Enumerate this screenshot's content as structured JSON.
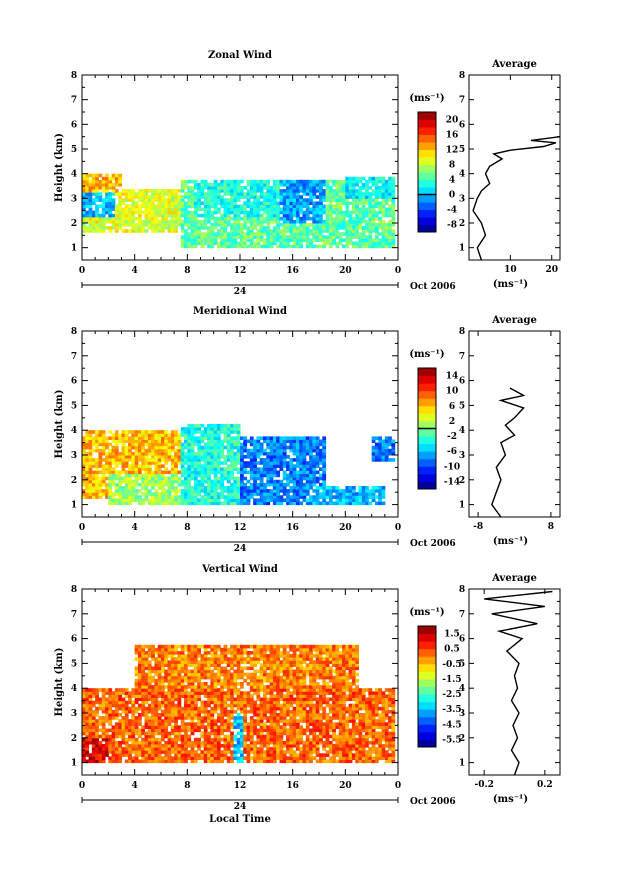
{
  "chart_data": [
    {
      "type": "heatmap",
      "title": "Zonal Wind",
      "ylabel": "Height (km)",
      "xlim": [
        0,
        24
      ],
      "ylim": [
        0.5,
        8
      ],
      "xticks": [
        "0",
        "4",
        "8",
        "12",
        "16",
        "20",
        "0"
      ],
      "yticks": [
        "1",
        "2",
        "3",
        "4",
        "5",
        "6",
        "7",
        "8"
      ],
      "date_marker": "24",
      "date_label": "Oct 2006",
      "colorbar": {
        "unit": "(ms⁻¹)",
        "ticks": [
          "20",
          "16",
          "12",
          "8",
          "4",
          "0",
          "-4",
          "-8"
        ],
        "min": -10,
        "max": 22
      },
      "zero_level": 0,
      "regions": [
        {
          "x": [
            0,
            7.5
          ],
          "y": [
            1.6,
            3.4
          ],
          "v": 9
        },
        {
          "x": [
            0,
            2.5
          ],
          "y": [
            2.2,
            3.3
          ],
          "v": 0
        },
        {
          "x": [
            0,
            3
          ],
          "y": [
            3.3,
            4.0
          ],
          "v": 12
        },
        {
          "x": [
            7.5,
            23.8
          ],
          "y": [
            1.0,
            3.7
          ],
          "v": 5
        },
        {
          "x": [
            8.5,
            16
          ],
          "y": [
            2.3,
            3.8
          ],
          "v": 3
        },
        {
          "x": [
            15,
            18.5
          ],
          "y": [
            2.0,
            3.8
          ],
          "v": -1
        },
        {
          "x": [
            20,
            23.8
          ],
          "y": [
            3.0,
            3.9
          ],
          "v": 2
        }
      ],
      "profile": {
        "title": "Average",
        "xlabel": "(ms⁻¹)",
        "xticks": [
          "10",
          "20"
        ],
        "xlim": [
          0,
          22
        ],
        "points": [
          [
            3,
            0.5
          ],
          [
            2,
            1
          ],
          [
            4,
            1.5
          ],
          [
            3,
            2
          ],
          [
            1,
            2.5
          ],
          [
            2,
            3
          ],
          [
            3,
            3.3
          ],
          [
            5,
            3.6
          ],
          [
            4,
            4
          ],
          [
            5,
            4.3
          ],
          [
            8,
            4.6
          ],
          [
            6,
            4.8
          ],
          [
            10,
            4.95
          ],
          [
            18,
            5.1
          ],
          [
            21,
            5.25
          ],
          [
            15,
            5.35
          ],
          [
            22,
            5.5
          ]
        ]
      }
    },
    {
      "type": "heatmap",
      "title": "Meridional Wind",
      "ylabel": "Height (km)",
      "xlim": [
        0,
        24
      ],
      "ylim": [
        0.5,
        8
      ],
      "xticks": [
        "0",
        "4",
        "8",
        "12",
        "16",
        "20",
        "0"
      ],
      "yticks": [
        "1",
        "2",
        "3",
        "4",
        "5",
        "6",
        "7",
        "8"
      ],
      "date_marker": "24",
      "date_label": "Oct 2006",
      "colorbar": {
        "unit": "(ms⁻¹)",
        "ticks": [
          "14",
          "10",
          "6",
          "2",
          "-2",
          "-6",
          "-10",
          "-14"
        ],
        "min": -16,
        "max": 16
      },
      "zero_level": 0,
      "regions": [
        {
          "x": [
            0,
            7.5
          ],
          "y": [
            1.3,
            4.0
          ],
          "v": 6
        },
        {
          "x": [
            2,
            7.5
          ],
          "y": [
            1.0,
            2.2
          ],
          "v": 1
        },
        {
          "x": [
            7.5,
            12
          ],
          "y": [
            1.0,
            4.3
          ],
          "v": -3
        },
        {
          "x": [
            12,
            18.5
          ],
          "y": [
            1.0,
            3.8
          ],
          "v": -8
        },
        {
          "x": [
            17,
            23
          ],
          "y": [
            1.0,
            1.7
          ],
          "v": -6
        },
        {
          "x": [
            22,
            23.8
          ],
          "y": [
            2.8,
            3.8
          ],
          "v": -8
        }
      ],
      "profile": {
        "title": "Average",
        "xlabel": "(ms⁻¹)",
        "xticks": [
          "-8",
          "8"
        ],
        "xlim": [
          -10,
          10
        ],
        "points": [
          [
            -3,
            0.5
          ],
          [
            -5,
            1
          ],
          [
            -4,
            1.5
          ],
          [
            -3,
            2
          ],
          [
            -4,
            2.5
          ],
          [
            -2,
            3
          ],
          [
            -3,
            3.5
          ],
          [
            0,
            3.8
          ],
          [
            -2,
            4.2
          ],
          [
            0,
            4.5
          ],
          [
            2,
            4.9
          ],
          [
            -3,
            5.2
          ],
          [
            2,
            5.4
          ],
          [
            -1,
            5.7
          ]
        ]
      }
    },
    {
      "type": "heatmap",
      "title": "Vertical Wind",
      "ylabel": "Height (km)",
      "xlabel": "Local Time",
      "xlim": [
        0,
        24
      ],
      "ylim": [
        0.5,
        8
      ],
      "xticks": [
        "0",
        "4",
        "8",
        "12",
        "16",
        "20",
        "0"
      ],
      "yticks": [
        "1",
        "2",
        "3",
        "4",
        "5",
        "6",
        "7",
        "8"
      ],
      "date_marker": "24",
      "date_label": "Oct 2006",
      "colorbar": {
        "unit": "(ms⁻¹)",
        "ticks": [
          "1.5",
          "0.5",
          "-0.5",
          "-1.5",
          "-2.5",
          "-3.5",
          "-4.5",
          "-5.5"
        ],
        "min": -6,
        "max": 2
      },
      "regions": [
        {
          "x": [
            0,
            23.8
          ],
          "y": [
            1.0,
            4.0
          ],
          "v": 0.2
        },
        {
          "x": [
            0,
            2
          ],
          "y": [
            1.0,
            2.0
          ],
          "v": 1.2
        },
        {
          "x": [
            11.5,
            12.3
          ],
          "y": [
            1.0,
            3.0
          ],
          "v": -3.5
        },
        {
          "x": [
            4,
            21
          ],
          "y": [
            4.0,
            5.8
          ],
          "v": 0.0
        }
      ],
      "profile": {
        "title": "Average",
        "xlabel": "(ms⁻¹)",
        "xticks": [
          "-0.2",
          "0.2"
        ],
        "xlim": [
          -0.3,
          0.3
        ],
        "points": [
          [
            0.0,
            0.5
          ],
          [
            0.03,
            1
          ],
          [
            -0.02,
            1.5
          ],
          [
            0.02,
            2
          ],
          [
            -0.01,
            2.5
          ],
          [
            0.03,
            3
          ],
          [
            -0.02,
            3.5
          ],
          [
            0.02,
            4
          ],
          [
            0.0,
            4.5
          ],
          [
            0.03,
            5
          ],
          [
            -0.05,
            5.5
          ],
          [
            0.05,
            6
          ],
          [
            -0.1,
            6.3
          ],
          [
            0.15,
            6.6
          ],
          [
            -0.15,
            7
          ],
          [
            0.2,
            7.3
          ],
          [
            -0.2,
            7.6
          ],
          [
            0.25,
            7.9
          ]
        ]
      }
    }
  ]
}
